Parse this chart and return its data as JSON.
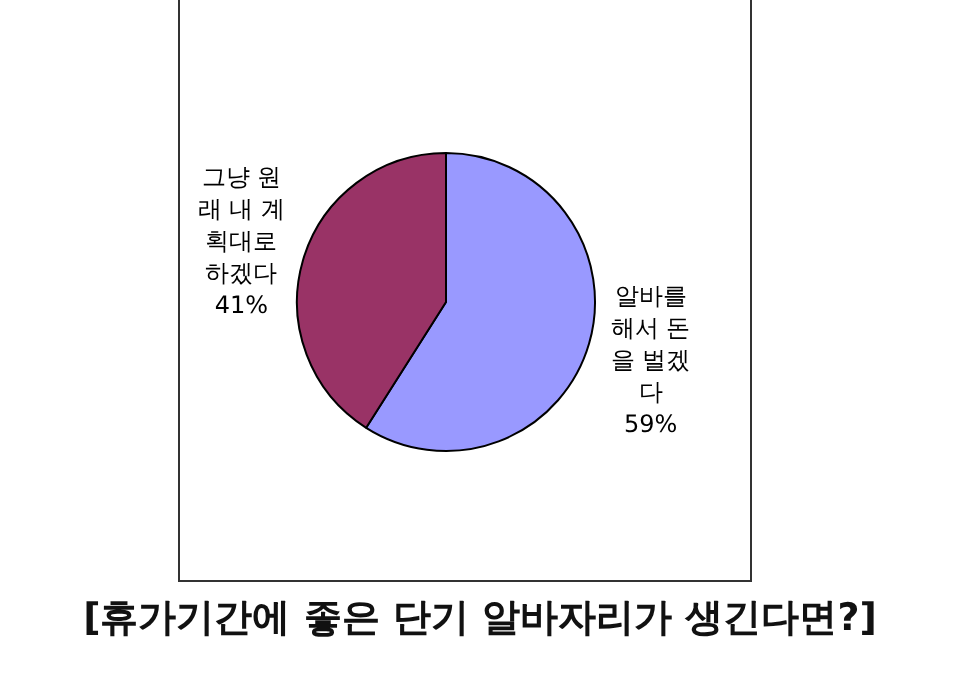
{
  "chart_data": {
    "type": "pie",
    "title": "[휴가기간에 좋은 단기 알바자리가 생긴다면?]",
    "categories": [
      "알바를 해서 돈을 벌겠다",
      "그냥 원래 내 계획대로 하겠다"
    ],
    "values": [
      59,
      41
    ],
    "colors": [
      "#9999ff",
      "#993366"
    ],
    "value_labels": [
      "59%",
      "41%"
    ],
    "legend": false
  }
}
